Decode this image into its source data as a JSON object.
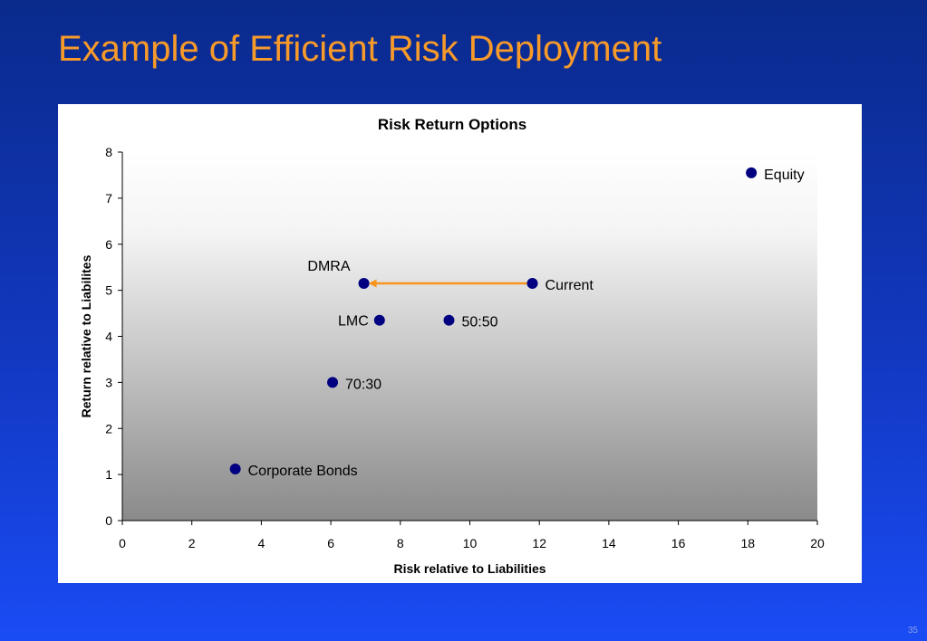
{
  "slide": {
    "title": "Example of Efficient Risk Deployment",
    "page_number": "35"
  },
  "colors": {
    "marker": "#000080",
    "arrow": "#f7941d",
    "title": "#f79a2a"
  },
  "chart_data": {
    "type": "scatter",
    "title": "Risk Return Options",
    "xlabel": "Risk relative to Liabilities",
    "ylabel": "Return relative to Liabilites",
    "xlim": [
      0,
      20
    ],
    "ylim": [
      0,
      8
    ],
    "xticks": [
      0,
      2,
      4,
      6,
      8,
      10,
      12,
      14,
      16,
      18,
      20
    ],
    "yticks": [
      0,
      1,
      2,
      3,
      4,
      5,
      6,
      7,
      8
    ],
    "points": [
      {
        "label": "Equity",
        "x": 18.1,
        "y": 7.55,
        "label_pos": "right"
      },
      {
        "label": "Current",
        "x": 11.8,
        "y": 5.15,
        "label_pos": "right"
      },
      {
        "label": "DMRA",
        "x": 6.95,
        "y": 5.15,
        "label_pos": "above-left"
      },
      {
        "label": "LMC",
        "x": 7.4,
        "y": 4.35,
        "label_pos": "left"
      },
      {
        "label": "50:50",
        "x": 9.4,
        "y": 4.35,
        "label_pos": "right"
      },
      {
        "label": "70:30",
        "x": 6.05,
        "y": 3.0,
        "label_pos": "right"
      },
      {
        "label": "Corporate Bonds",
        "x": 3.25,
        "y": 1.12,
        "label_pos": "right"
      }
    ],
    "arrow": {
      "from": [
        11.8,
        5.15
      ],
      "to": [
        6.95,
        5.15
      ]
    },
    "grid": false,
    "legend": "none"
  }
}
